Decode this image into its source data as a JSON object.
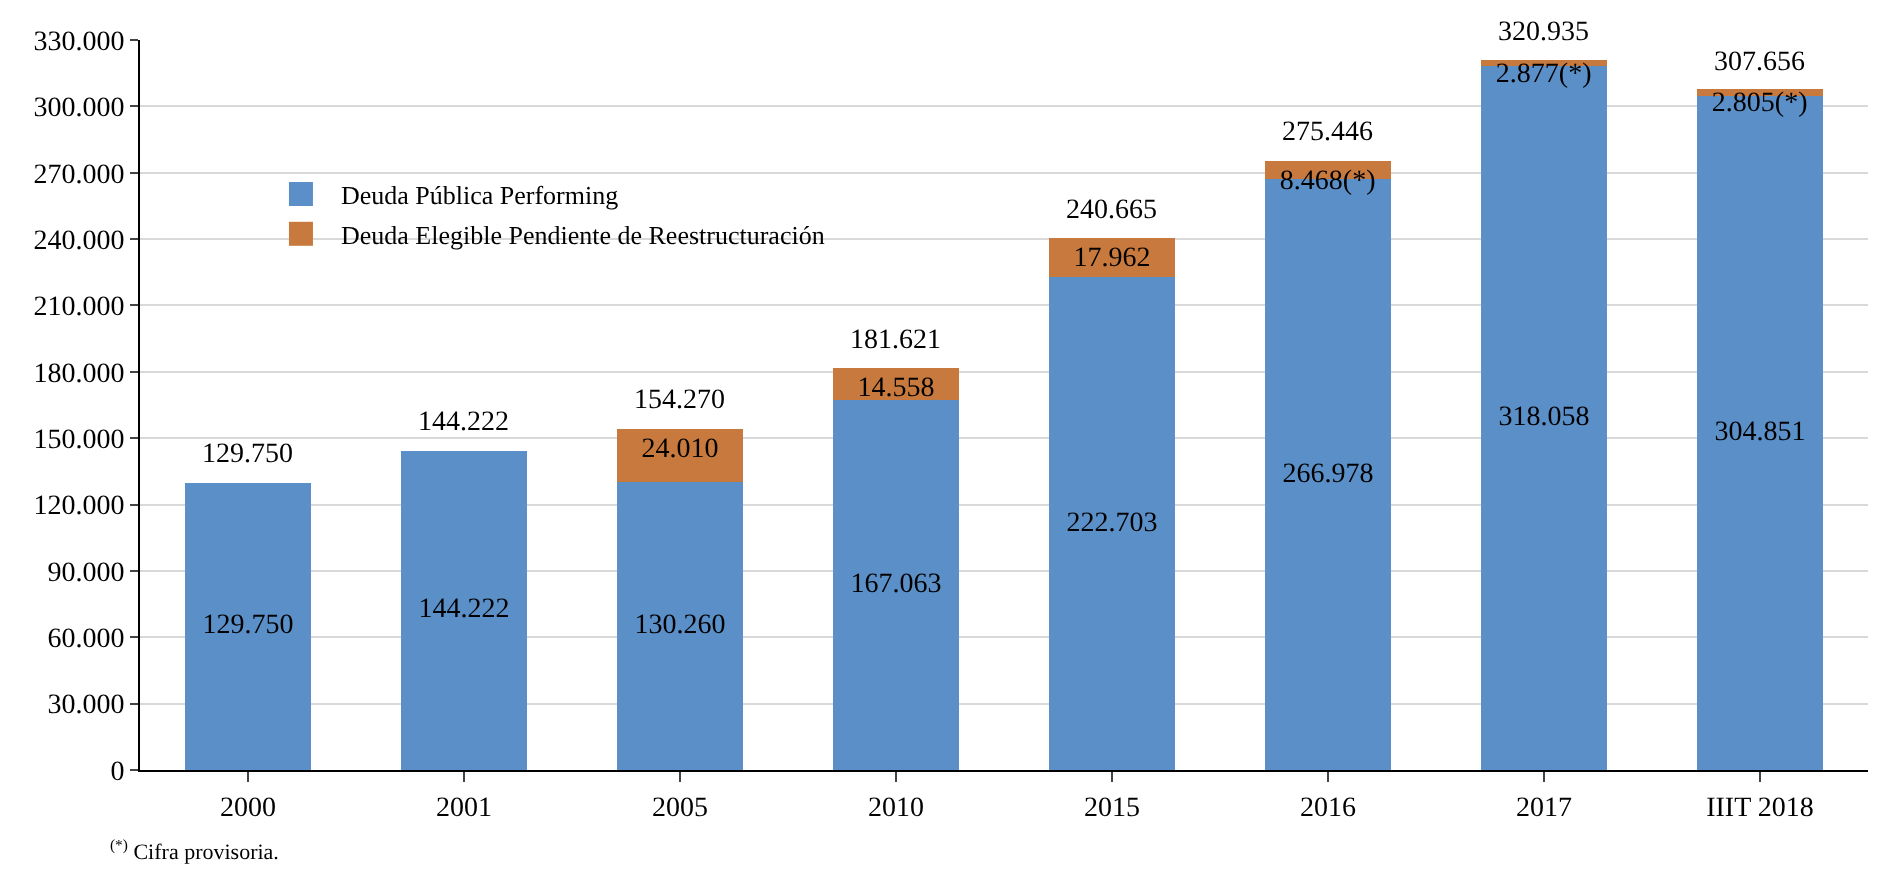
{
  "chart_data": {
    "type": "bar",
    "stacked": true,
    "categories": [
      "2000",
      "2001",
      "2005",
      "2010",
      "2015",
      "2016",
      "2017",
      "IIIT 2018"
    ],
    "series": [
      {
        "name": "Deuda Pública Performing",
        "color": "#5b8fc7",
        "values": [
          129750,
          144222,
          130260,
          167063,
          222703,
          266978,
          318058,
          304851
        ],
        "value_labels": [
          "129.750",
          "144.222",
          "130.260",
          "167.063",
          "222.703",
          "266.978",
          "318.058",
          "304.851"
        ]
      },
      {
        "name": "Deuda Elegible Pendiente de Reestructuración",
        "color": "#c8793d",
        "values": [
          null,
          null,
          24010,
          14558,
          17962,
          8468,
          2877,
          2805
        ],
        "value_labels": [
          null,
          null,
          "24.010",
          "14.558",
          "17.962",
          "8.468(*)",
          "2.877(*)",
          "2.805(*)"
        ]
      }
    ],
    "totals": [
      "129.750",
      "144.222",
      "154.270",
      "181.621",
      "240.665",
      "275.446",
      "320.935",
      "307.656"
    ],
    "ylim": [
      0,
      330000
    ],
    "yticks": [
      {
        "value": 0,
        "label": "0"
      },
      {
        "value": 30000,
        "label": "30.000"
      },
      {
        "value": 60000,
        "label": "60.000"
      },
      {
        "value": 90000,
        "label": "90.000"
      },
      {
        "value": 120000,
        "label": "120.000"
      },
      {
        "value": 150000,
        "label": "150.000"
      },
      {
        "value": 180000,
        "label": "180.000"
      },
      {
        "value": 210000,
        "label": "210.000"
      },
      {
        "value": 240000,
        "label": "240.000"
      },
      {
        "value": 270000,
        "label": "270.000"
      },
      {
        "value": 300000,
        "label": "300.000"
      },
      {
        "value": 330000,
        "label": "330.000"
      }
    ],
    "grid": "y",
    "legend": "top left",
    "annotations": [
      "$^{(*)}$ Cifra provisoria."
    ]
  }
}
